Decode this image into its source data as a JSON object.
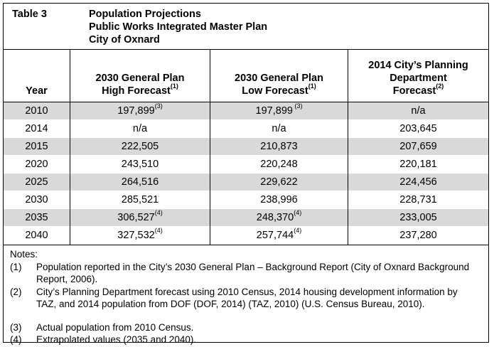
{
  "table": {
    "label": "Table 3",
    "title_lines": [
      "Population Projections",
      "Public Works Integrated Master Plan",
      "City of Oxnard"
    ],
    "columns": {
      "year": "Year",
      "high": {
        "line1": "2030 General Plan",
        "line2": "High Forecast",
        "sup": "(1)"
      },
      "low": {
        "line1": "2030 General Plan",
        "line2": "Low Forecast",
        "sup": "(1)"
      },
      "city": {
        "line1": "2014 City’s Planning",
        "line2": "Department",
        "line3": "Forecast",
        "sup": "(2)"
      }
    },
    "rows": [
      {
        "year": "2010",
        "high": "197,899",
        "high_sup": "(3)",
        "low": "197,899",
        "low_sup": " (3)",
        "city": "n/a",
        "city_sup": ""
      },
      {
        "year": "2014",
        "high": "n/a",
        "high_sup": "",
        "low": "n/a",
        "low_sup": "",
        "city": "203,645",
        "city_sup": ""
      },
      {
        "year": "2015",
        "high": "222,505",
        "high_sup": "",
        "low": "210,873",
        "low_sup": "",
        "city": "207,659",
        "city_sup": ""
      },
      {
        "year": "2020",
        "high": "243,510",
        "high_sup": "",
        "low": "220,248",
        "low_sup": "",
        "city": "220,181",
        "city_sup": ""
      },
      {
        "year": "2025",
        "high": "264,516",
        "high_sup": "",
        "low": "229,622",
        "low_sup": "",
        "city": "224,456",
        "city_sup": ""
      },
      {
        "year": "2030",
        "high": "285,521",
        "high_sup": "",
        "low": "238,996",
        "low_sup": "",
        "city": "228,731",
        "city_sup": ""
      },
      {
        "year": "2035",
        "high": "306,527",
        "high_sup": "(4)",
        "low": "248,370",
        "low_sup": "(4)",
        "city": "233,005",
        "city_sup": ""
      },
      {
        "year": "2040",
        "high": "327,532",
        "high_sup": "(4)",
        "low": "257,744",
        "low_sup": "(4)",
        "city": "237,280",
        "city_sup": ""
      }
    ],
    "notes": {
      "heading": "Notes:",
      "items": [
        {
          "num": "(1)",
          "text": "Population reported in the City’s 2030 General Plan – Background Report (City of Oxnard Background Report, 2006)."
        },
        {
          "num": "(2)",
          "text": "City’s Planning Department forecast using 2010 Census, 2014 housing development information by TAZ, and 2014 population from DOF (DOF, 2014) (TAZ, 2010) (U.S. Census Bureau, 2010)."
        },
        {
          "num": "(3)",
          "text": "Actual population from 2010 Census."
        },
        {
          "num": "(4)",
          "text": "Extrapolated values (2035 and 2040)."
        }
      ]
    }
  }
}
